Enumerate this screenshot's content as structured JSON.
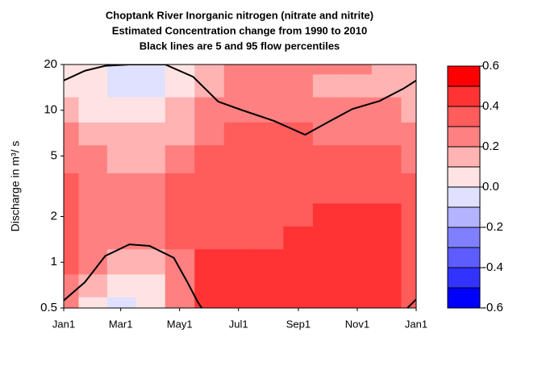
{
  "chart_data": {
    "type": "filled-contour",
    "title": [
      "Choptank River  Inorganic nitrogen (nitrate and nitrite)",
      "Estimated Concentration change from 1990 to 2010",
      "Black lines are 5 and 95 flow percentiles"
    ],
    "y_label": "Discharge in m³/ s",
    "x": [
      0,
      31,
      59,
      90,
      120,
      151,
      181,
      212,
      243,
      273,
      304,
      334,
      365
    ],
    "y": [
      0.5,
      0.7,
      1,
      1.5,
      2,
      3,
      5,
      7,
      10,
      15,
      20
    ],
    "z": [
      [
        0.25,
        0.05,
        -0.05,
        0.05,
        0.2,
        0.45,
        0.45,
        0.45,
        0.45,
        0.45,
        0.45,
        0.45,
        0.35
      ],
      [
        0.25,
        0.1,
        0.05,
        0.05,
        0.2,
        0.45,
        0.45,
        0.45,
        0.45,
        0.45,
        0.45,
        0.45,
        0.35
      ],
      [
        0.3,
        0.2,
        0.15,
        0.15,
        0.25,
        0.42,
        0.42,
        0.4,
        0.42,
        0.45,
        0.45,
        0.45,
        0.35
      ],
      [
        0.35,
        0.25,
        0.2,
        0.2,
        0.3,
        0.38,
        0.38,
        0.38,
        0.4,
        0.45,
        0.45,
        0.45,
        0.35
      ],
      [
        0.35,
        0.25,
        0.2,
        0.25,
        0.35,
        0.35,
        0.35,
        0.35,
        0.35,
        0.42,
        0.42,
        0.42,
        0.35
      ],
      [
        0.3,
        0.25,
        0.25,
        0.25,
        0.3,
        0.35,
        0.35,
        0.35,
        0.35,
        0.38,
        0.38,
        0.35,
        0.3
      ],
      [
        0.25,
        0.25,
        0.15,
        0.15,
        0.2,
        0.3,
        0.35,
        0.3,
        0.35,
        0.35,
        0.35,
        0.3,
        0.25
      ],
      [
        0.25,
        0.15,
        0.12,
        0.12,
        0.15,
        0.25,
        0.3,
        0.3,
        0.3,
        0.28,
        0.25,
        0.25,
        0.2
      ],
      [
        0.15,
        0.05,
        0.02,
        0.02,
        0.1,
        0.25,
        0.25,
        0.25,
        0.25,
        0.25,
        0.2,
        0.2,
        0.15
      ],
      [
        0.05,
        0.02,
        -0.05,
        -0.05,
        0.05,
        0.15,
        0.25,
        0.25,
        0.2,
        0.15,
        0.15,
        0.15,
        0.1
      ],
      [
        0.05,
        0.05,
        -0.05,
        -0.05,
        0.05,
        0.15,
        0.25,
        0.25,
        0.25,
        0.25,
        0.2,
        0.15,
        0.15
      ]
    ],
    "levels": [
      -0.6,
      -0.5,
      -0.4,
      -0.3,
      -0.2,
      -0.1,
      0,
      0.1,
      0.2,
      0.3,
      0.4,
      0.5,
      0.6
    ],
    "level_colors": [
      "#0000ff",
      "#3333ff",
      "#5c5cff",
      "#8080ff",
      "#b3b3ff",
      "#e0e0ff",
      "#ffe3e3",
      "#ffb3b3",
      "#ff8080",
      "#ff5c5c",
      "#ff3333",
      "#ff0000"
    ],
    "colorbar_ticks": [
      -0.6,
      -0.4,
      -0.2,
      {
        "value": 0,
        "label": "0.0"
      },
      0.2,
      0.4,
      0.6
    ],
    "series": [
      {
        "color": "#000000",
        "x": [
          0,
          22,
          43,
          68,
          105,
          134,
          160,
          185,
          218,
          250,
          276,
          299,
          327,
          352,
          365
        ],
        "values": [
          15.7,
          18.2,
          19.6,
          20,
          20,
          16.6,
          11.4,
          10,
          8.5,
          6.9,
          8.5,
          10.2,
          11.5,
          13.9,
          15.7
        ]
      },
      {
        "color": "#000000",
        "x": [
          0,
          22,
          43,
          68,
          89,
          114,
          128,
          139,
          143,
          null,
          356,
          365
        ],
        "values": [
          0.56,
          0.74,
          1.1,
          1.31,
          1.28,
          1.07,
          0.74,
          0.545,
          0.5,
          null,
          0.5,
          0.57
        ]
      }
    ],
    "xlim": [
      0,
      365
    ],
    "xticks": [
      {
        "value": 0,
        "label": "Jan1"
      },
      {
        "value": 59,
        "label": "Mar1"
      },
      {
        "value": 120,
        "label": "May1"
      },
      {
        "value": 181,
        "label": "Jul1"
      },
      {
        "value": 243,
        "label": "Sep1"
      },
      {
        "value": 304,
        "label": "Nov1"
      },
      {
        "value": 365,
        "label": "Jan1"
      }
    ],
    "ylim": [
      0.5,
      20
    ],
    "yticks": [
      0.5,
      1,
      2,
      5,
      10,
      20
    ],
    "log_y": true
  }
}
